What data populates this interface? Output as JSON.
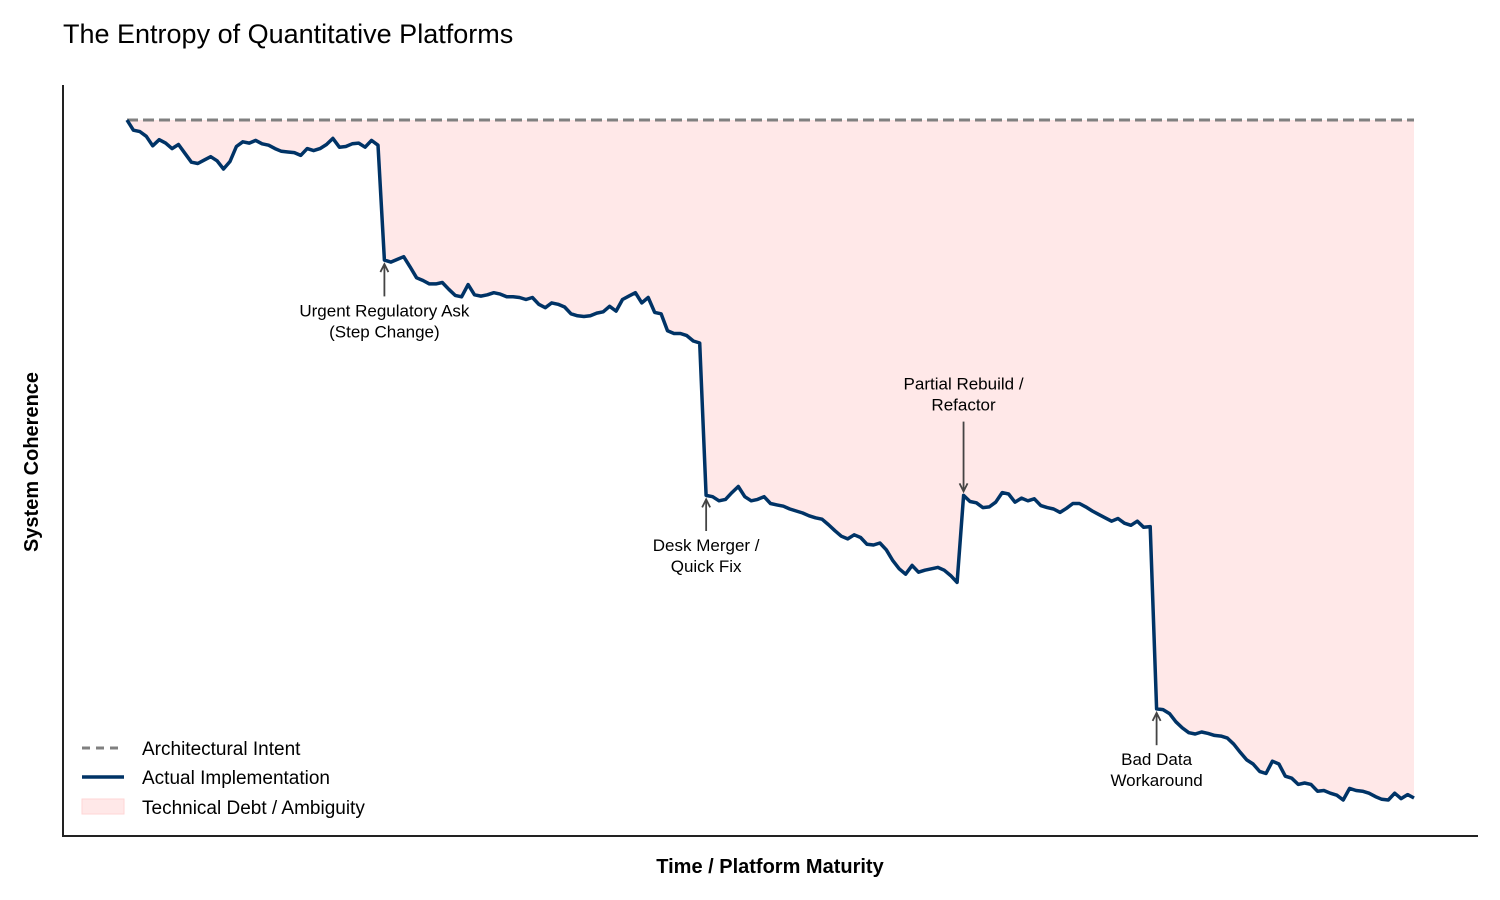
{
  "chart_data": {
    "type": "line",
    "title": "The Entropy of Quantitative Platforms",
    "xlabel": "Time / Platform Maturity",
    "ylabel": "System Coherence",
    "xlim": [
      0,
      100
    ],
    "ylim": [
      -5,
      105
    ],
    "grid": false,
    "ticks": false,
    "legend_position": "lower left",
    "colors": {
      "intent": "#808080",
      "actual": "#003366",
      "debt_fill": "#ffe8e8",
      "annotation_default": "#000000",
      "annotation_positive": "#008000",
      "arrow": "#444444"
    },
    "series": [
      {
        "name": "Architectural Intent",
        "style": "dashed",
        "x": [
          0,
          100
        ],
        "y": [
          100,
          100
        ]
      },
      {
        "name": "Actual Implementation",
        "style": "solid",
        "x": [
          0,
          0.5,
          1.0,
          1.5,
          2.0,
          2.5,
          3.0,
          3.5,
          4.0,
          4.5,
          5.0,
          5.5,
          6.0,
          6.5,
          7.0,
          7.5,
          8.0,
          8.5,
          9.0,
          9.5,
          10.0,
          10.5,
          11.0,
          11.5,
          12.0,
          12.5,
          13.0,
          13.5,
          14.0,
          14.5,
          15.0,
          15.5,
          16.0,
          16.5,
          17.0,
          17.5,
          18.0,
          18.5,
          19.0,
          19.5,
          20.0,
          20.5,
          21.0,
          21.5,
          22.0,
          22.5,
          23.0,
          23.5,
          24.0,
          24.5,
          25.0,
          25.5,
          26.0,
          26.5,
          27.0,
          27.5,
          28.0,
          28.5,
          29.0,
          29.5,
          30.0,
          30.5,
          31.0,
          31.5,
          32.0,
          32.5,
          33.0,
          33.5,
          34.0,
          34.5,
          35.0,
          35.5,
          36.0,
          36.5,
          37.0,
          37.5,
          38.0,
          38.5,
          39.0,
          39.5,
          40.0,
          40.5,
          41.0,
          41.5,
          42.0,
          42.5,
          43.0,
          43.5,
          44.0,
          44.5,
          45.0,
          45.5,
          46.0,
          46.5,
          47.0,
          47.5,
          48.0,
          48.5,
          49.0,
          49.5,
          50.0,
          50.5,
          51.0,
          51.5,
          52.0,
          52.5,
          53.0,
          53.5,
          54.0,
          54.5,
          55.0,
          55.5,
          56.0,
          56.5,
          57.0,
          57.5,
          58.0,
          58.5,
          59.0,
          59.5,
          60.0,
          60.5,
          61.0,
          61.5,
          62.0,
          62.5,
          63.0,
          63.5,
          64.0,
          64.5,
          65.0,
          65.5,
          66.0,
          66.5,
          67.0,
          67.5,
          68.0,
          68.5,
          69.0,
          69.5,
          70.0,
          70.5,
          71.0,
          71.5,
          72.0,
          72.5,
          73.0,
          73.5,
          74.0,
          74.5,
          75.0,
          75.5,
          76.0,
          76.5,
          77.0,
          77.5,
          78.0,
          78.5,
          79.0,
          79.5,
          80.0,
          80.5,
          81.0,
          81.5,
          82.0,
          82.5,
          83.0,
          83.5,
          84.0,
          84.5,
          85.0,
          85.5,
          86.0,
          86.5,
          87.0,
          87.5,
          88.0,
          88.5,
          89.0,
          89.5,
          90.0,
          90.5,
          91.0,
          91.5,
          92.0,
          92.5,
          93.0,
          93.5,
          94.0,
          94.5,
          95.0,
          95.5,
          96.0,
          96.5,
          97.0,
          97.5,
          98.0,
          98.5,
          99.0,
          99.5,
          100.0
        ],
        "y": [
          100.0,
          98.5,
          98.3,
          97.6,
          96.2,
          97.1,
          96.6,
          95.8,
          96.4,
          95.1,
          93.8,
          93.6,
          94.1,
          94.6,
          94.0,
          92.8,
          93.9,
          96.1,
          96.8,
          96.6,
          97.0,
          96.5,
          96.3,
          95.8,
          95.4,
          95.3,
          95.2,
          94.8,
          95.8,
          95.5,
          95.8,
          96.4,
          97.3,
          96.0,
          96.1,
          96.5,
          96.6,
          96.0,
          97.0,
          96.3,
          79.4,
          79.1,
          79.5,
          79.9,
          78.4,
          76.8,
          76.4,
          75.9,
          75.9,
          76.1,
          75.1,
          74.2,
          74.0,
          75.8,
          74.3,
          74.1,
          74.3,
          74.6,
          74.4,
          74.0,
          74.0,
          73.9,
          73.6,
          73.9,
          72.9,
          72.4,
          73.1,
          72.9,
          72.5,
          71.5,
          71.2,
          71.1,
          71.2,
          71.6,
          71.8,
          72.6,
          71.9,
          73.6,
          74.1,
          74.6,
          73.1,
          73.9,
          71.7,
          71.5,
          69.0,
          68.6,
          68.6,
          68.3,
          67.5,
          67.2,
          44.8,
          44.6,
          44.0,
          44.2,
          45.2,
          46.1,
          44.6,
          44.0,
          44.2,
          44.6,
          43.6,
          43.4,
          43.2,
          42.8,
          42.5,
          42.2,
          41.8,
          41.5,
          41.3,
          40.5,
          39.6,
          38.8,
          38.4,
          39.0,
          38.6,
          37.6,
          37.5,
          37.8,
          36.8,
          35.2,
          34.0,
          33.2,
          34.5,
          33.5,
          33.8,
          34.0,
          34.2,
          33.8,
          33.0,
          32.0,
          44.8,
          43.9,
          43.7,
          43.0,
          43.1,
          43.8,
          45.2,
          45.0,
          43.8,
          44.4,
          44.0,
          44.3,
          43.3,
          43.0,
          42.8,
          42.3,
          42.9,
          43.6,
          43.6,
          43.1,
          42.5,
          42.0,
          41.5,
          41.0,
          41.4,
          40.7,
          40.4,
          41.0,
          40.1,
          40.2,
          13.4,
          13.3,
          12.7,
          11.5,
          10.6,
          9.9,
          9.7,
          10.0,
          9.8,
          9.5,
          9.4,
          9.1,
          8.2,
          7.0,
          5.9,
          5.3,
          4.2,
          3.9,
          5.7,
          5.3,
          3.5,
          3.2,
          2.3,
          2.5,
          2.3,
          1.3,
          1.4,
          1.0,
          0.7,
          0.0,
          1.7,
          1.4,
          1.3,
          1.0,
          0.5,
          0.1,
          0.0,
          1.0,
          0.2,
          0.8,
          0.3
        ]
      }
    ],
    "fill_between": {
      "name": "Technical Debt / Ambiguity",
      "between": [
        "Architectural Intent",
        "Actual Implementation"
      ],
      "color": "#ffe8e8"
    },
    "annotations": [
      {
        "id": "regulatory",
        "lines": [
          "Urgent Regulatory Ask",
          "(Step Change)"
        ],
        "x": 20.0,
        "y": 79.4,
        "text_x": 20.0,
        "text_y": 72.0,
        "color": "#000000",
        "arrow_direction": "up"
      },
      {
        "id": "desk-merger",
        "lines": [
          "Desk Merger /",
          "Quick Fix"
        ],
        "x": 45.0,
        "y": 44.8,
        "text_x": 45.0,
        "text_y": 37.5,
        "color": "#000000",
        "arrow_direction": "up"
      },
      {
        "id": "rebuild",
        "lines": [
          "Partial Rebuild /",
          "Refactor"
        ],
        "x": 65.0,
        "y": 44.8,
        "text_x": 65.0,
        "text_y": 58.0,
        "color": "#008000",
        "arrow_direction": "down"
      },
      {
        "id": "bad-data",
        "lines": [
          "Bad Data",
          "Workaround"
        ],
        "x": 80.0,
        "y": 13.4,
        "text_x": 80.0,
        "text_y": 6.0,
        "color": "#000000",
        "arrow_direction": "up"
      }
    ]
  },
  "legend": {
    "items": [
      {
        "label": "Architectural Intent",
        "swatch": "dashed-line"
      },
      {
        "label": "Actual Implementation",
        "swatch": "solid-line"
      },
      {
        "label": "Technical Debt / Ambiguity",
        "swatch": "fill-patch"
      }
    ]
  }
}
